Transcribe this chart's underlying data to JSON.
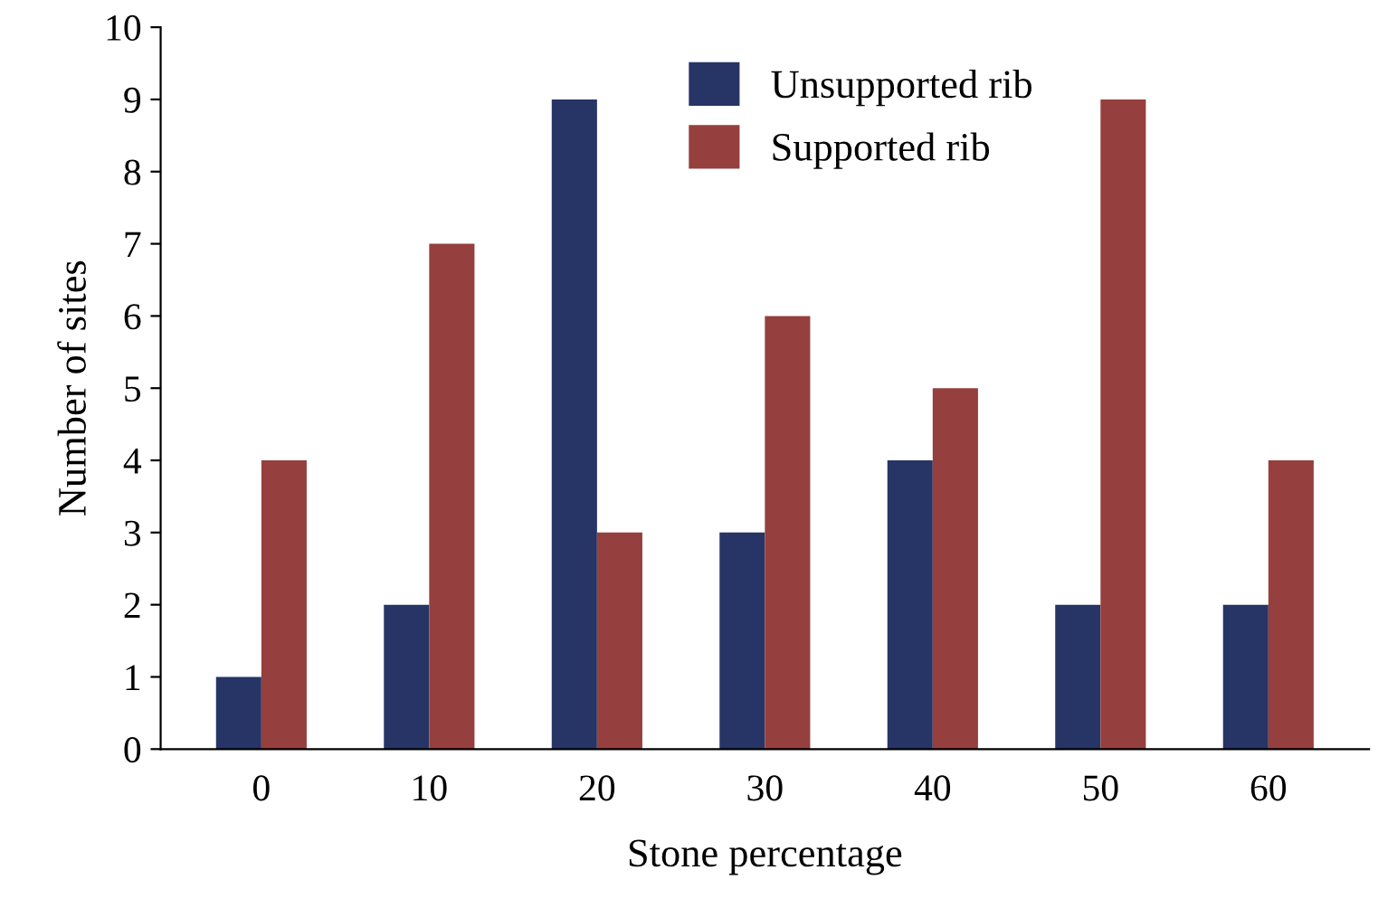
{
  "chart_data": {
    "type": "bar",
    "xlabel": "Stone percentage",
    "ylabel": "Number of sites",
    "categories": [
      "0",
      "10",
      "20",
      "30",
      "40",
      "50",
      "60"
    ],
    "series": [
      {
        "name": "Unsupported rib",
        "color": "#263566",
        "values": [
          1,
          2,
          9,
          3,
          4,
          2,
          2
        ]
      },
      {
        "name": "Supported rib",
        "color": "#953f3e",
        "values": [
          4,
          7,
          3,
          6,
          5,
          9,
          4
        ]
      }
    ],
    "ylim": [
      0,
      10
    ],
    "yticks": [
      0,
      1,
      2,
      3,
      4,
      5,
      6,
      7,
      8,
      9,
      10
    ],
    "grid": false,
    "legend": "top"
  }
}
